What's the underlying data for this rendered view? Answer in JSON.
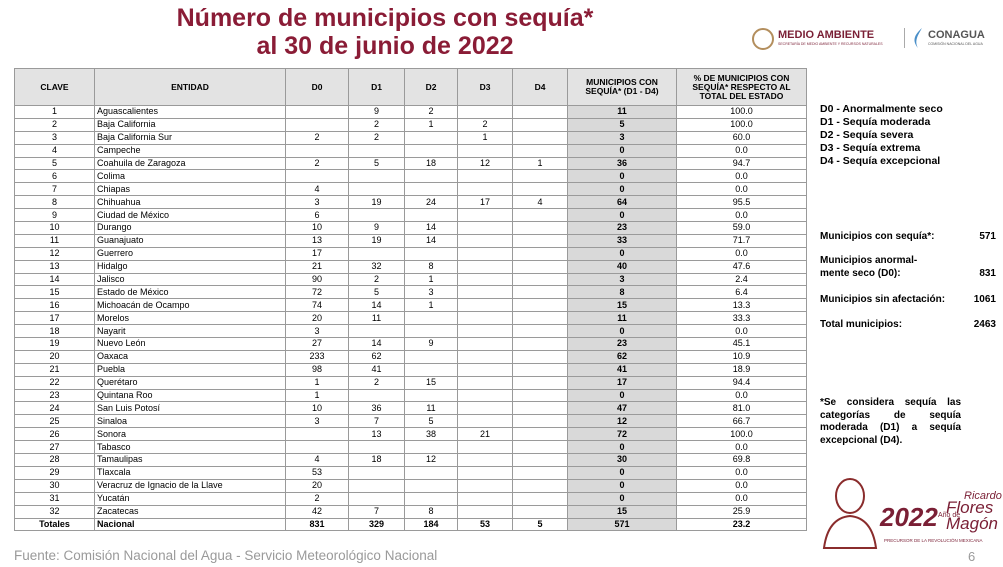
{
  "header": {
    "title_line1": "Número de municipios con sequía*",
    "title_line2": "al 30 de junio de 2022",
    "logo_left": "MEDIO AMBIENTE",
    "logo_left_sub": "SECRETARÍA DE MEDIO AMBIENTE Y RECURSOS NATURALES",
    "logo_right": "CONAGUA",
    "logo_right_sub": "COMISIÓN NACIONAL DEL AGUA"
  },
  "table": {
    "columns": [
      "CLAVE",
      "ENTIDAD",
      "D0",
      "D1",
      "D2",
      "D3",
      "D4",
      "MUNICIPIOS CON SEQUÍA* (D1 - D4)",
      "% DE MUNICIPIOS CON SEQUÍA* RESPECTO AL TOTAL DEL ESTADO"
    ],
    "rows": [
      [
        "1",
        "Aguascalientes",
        null,
        "9",
        "2",
        null,
        null,
        "11",
        "100.0"
      ],
      [
        "2",
        "Baja California",
        null,
        "2",
        "1",
        "2",
        null,
        "5",
        "100.0"
      ],
      [
        "3",
        "Baja California Sur",
        "2",
        "2",
        null,
        "1",
        null,
        "3",
        "60.0"
      ],
      [
        "4",
        "Campeche",
        null,
        null,
        null,
        null,
        null,
        "0",
        "0.0"
      ],
      [
        "5",
        "Coahuila de Zaragoza",
        "2",
        "5",
        "18",
        "12",
        "1",
        "36",
        "94.7"
      ],
      [
        "6",
        "Colima",
        null,
        null,
        null,
        null,
        null,
        "0",
        "0.0"
      ],
      [
        "7",
        "Chiapas",
        "4",
        null,
        null,
        null,
        null,
        "0",
        "0.0"
      ],
      [
        "8",
        "Chihuahua",
        "3",
        "19",
        "24",
        "17",
        "4",
        "64",
        "95.5"
      ],
      [
        "9",
        "Ciudad de México",
        "6",
        null,
        null,
        null,
        null,
        "0",
        "0.0"
      ],
      [
        "10",
        "Durango",
        "10",
        "9",
        "14",
        null,
        null,
        "23",
        "59.0"
      ],
      [
        "11",
        "Guanajuato",
        "13",
        "19",
        "14",
        null,
        null,
        "33",
        "71.7"
      ],
      [
        "12",
        "Guerrero",
        "17",
        null,
        null,
        null,
        null,
        "0",
        "0.0"
      ],
      [
        "13",
        "Hidalgo",
        "21",
        "32",
        "8",
        null,
        null,
        "40",
        "47.6"
      ],
      [
        "14",
        "Jalisco",
        "90",
        "2",
        "1",
        null,
        null,
        "3",
        "2.4"
      ],
      [
        "15",
        "Estado de México",
        "72",
        "5",
        "3",
        null,
        null,
        "8",
        "6.4"
      ],
      [
        "16",
        "Michoacán de Ocampo",
        "74",
        "14",
        "1",
        null,
        null,
        "15",
        "13.3"
      ],
      [
        "17",
        "Morelos",
        "20",
        "11",
        null,
        null,
        null,
        "11",
        "33.3"
      ],
      [
        "18",
        "Nayarit",
        "3",
        null,
        null,
        null,
        null,
        "0",
        "0.0"
      ],
      [
        "19",
        "Nuevo León",
        "27",
        "14",
        "9",
        null,
        null,
        "23",
        "45.1"
      ],
      [
        "20",
        "Oaxaca",
        "233",
        "62",
        null,
        null,
        null,
        "62",
        "10.9"
      ],
      [
        "21",
        "Puebla",
        "98",
        "41",
        null,
        null,
        null,
        "41",
        "18.9"
      ],
      [
        "22",
        "Querétaro",
        "1",
        "2",
        "15",
        null,
        null,
        "17",
        "94.4"
      ],
      [
        "23",
        "Quintana Roo",
        "1",
        null,
        null,
        null,
        null,
        "0",
        "0.0"
      ],
      [
        "24",
        "San Luis Potosí",
        "10",
        "36",
        "11",
        null,
        null,
        "47",
        "81.0"
      ],
      [
        "25",
        "Sinaloa",
        "3",
        "7",
        "5",
        null,
        null,
        "12",
        "66.7"
      ],
      [
        "26",
        "Sonora",
        null,
        "13",
        "38",
        "21",
        null,
        "72",
        "100.0"
      ],
      [
        "27",
        "Tabasco",
        null,
        null,
        null,
        null,
        null,
        "0",
        "0.0"
      ],
      [
        "28",
        "Tamaulipas",
        "4",
        "18",
        "12",
        null,
        null,
        "30",
        "69.8"
      ],
      [
        "29",
        "Tlaxcala",
        "53",
        null,
        null,
        null,
        null,
        "0",
        "0.0"
      ],
      [
        "30",
        "Veracruz de Ignacio de la Llave",
        "20",
        null,
        null,
        null,
        null,
        "0",
        "0.0"
      ],
      [
        "31",
        "Yucatán",
        "2",
        null,
        null,
        null,
        null,
        "0",
        "0.0"
      ],
      [
        "32",
        "Zacatecas",
        "42",
        "7",
        "8",
        null,
        null,
        "15",
        "25.9"
      ]
    ],
    "totals": [
      "Totales",
      "Nacional",
      "831",
      "329",
      "184",
      "53",
      "5",
      "571",
      "23.2"
    ]
  },
  "legend": [
    "D0 - Anormalmente seco",
    "D1 - Sequía moderada",
    "D2 - Sequía severa",
    "D3 - Sequía extrema",
    "D4 - Sequía excepcional"
  ],
  "summary": [
    {
      "label": "Municipios con sequía*:",
      "value": "571"
    },
    {
      "label": "Municipios anormal-\nmente seco (D0):",
      "value": "831"
    },
    {
      "label": "Municipios sin afectación:",
      "value": "1061"
    },
    {
      "label": "Total municipios:",
      "value": "2463"
    }
  ],
  "footnote": "*Se considera sequía las categorías de sequía moderada (D1) a sequía excepcional (D4).",
  "emblem": {
    "year": "2022",
    "line1": "Año de",
    "name1": "Ricardo",
    "name2": "Flores",
    "name3": "Magón",
    "sub": "PRECURSOR DE LA REVOLUCIÓN MEXICANA"
  },
  "footer": {
    "source": "Fuente: Comisión Nacional del Agua - Servicio Meteorológico Nacional",
    "page": "6"
  }
}
